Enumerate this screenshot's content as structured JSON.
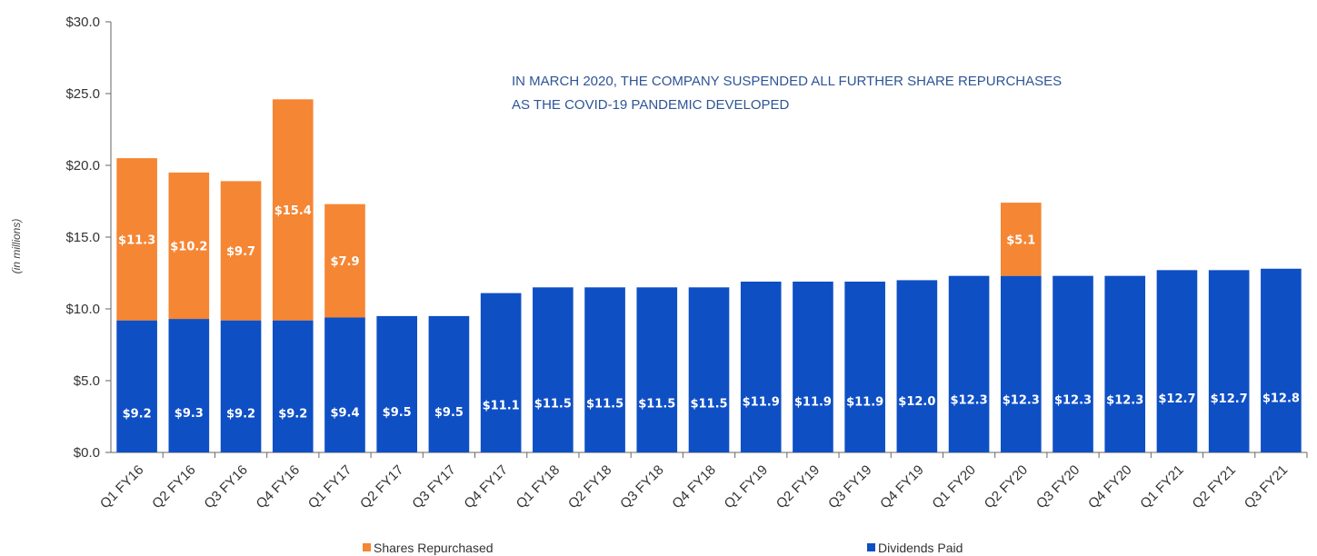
{
  "chart_data": {
    "type": "bar",
    "stacked": true,
    "ylabel": "(in millions)",
    "ylim": [
      0,
      30
    ],
    "yticks": [
      "$0.0",
      "$5.0",
      "$10.0",
      "$15.0",
      "$20.0",
      "$25.0",
      "$30.0"
    ],
    "categories": [
      "Q1 FY16",
      "Q2 FY16",
      "Q3 FY16",
      "Q4 FY16",
      "Q1 FY17",
      "Q2 FY17",
      "Q3 FY17",
      "Q4 FY17",
      "Q1 FY18",
      "Q2 FY18",
      "Q3 FY18",
      "Q4 FY18",
      "Q1 FY19",
      "Q2 FY19",
      "Q3 FY19",
      "Q4 FY19",
      "Q1 FY20",
      "Q2 FY20",
      "Q3 FY20",
      "Q4 FY20",
      "Q1 FY21",
      "Q2 FY21",
      "Q3 FY21"
    ],
    "series": [
      {
        "name": "Dividends Paid",
        "color": "#0f4fc4",
        "values": [
          9.2,
          9.3,
          9.2,
          9.2,
          9.4,
          9.5,
          9.5,
          11.1,
          11.5,
          11.5,
          11.5,
          11.5,
          11.9,
          11.9,
          11.9,
          12.0,
          12.3,
          12.3,
          12.3,
          12.3,
          12.7,
          12.7,
          12.8
        ],
        "labels": [
          "$9.2",
          "$9.3",
          "$9.2",
          "$9.2",
          "$9.4",
          "$9.5",
          "$9.5",
          "$11.1",
          "$11.5",
          "$11.5",
          "$11.5",
          "$11.5",
          "$11.9",
          "$11.9",
          "$11.9",
          "$12.0",
          "$12.3",
          "$12.3",
          "$12.3",
          "$12.3",
          "$12.7",
          "$12.7",
          "$12.8"
        ]
      },
      {
        "name": "Shares Repurchased",
        "color": "#f58634",
        "values": [
          11.3,
          10.2,
          9.7,
          15.4,
          7.9,
          0,
          0,
          0,
          0,
          0,
          0,
          0,
          0,
          0,
          0,
          0,
          0,
          5.1,
          0,
          0,
          0,
          0,
          0
        ],
        "labels": [
          "$11.3",
          "$10.2",
          "$9.7",
          "$15.4",
          "$7.9",
          "",
          "",
          "",
          "",
          "",
          "",
          "",
          "",
          "",
          "",
          "",
          "",
          "$5.1",
          "",
          "",
          "",
          "",
          ""
        ]
      }
    ],
    "annotations": [
      "IN MARCH 2020, THE COMPANY SUSPENDED ALL FURTHER  SHARE REPURCHASES",
      "AS THE  COVID-19  PANDEMIC  DEVELOPED"
    ],
    "legend": {
      "placement": "bottom",
      "items": [
        {
          "name": "Shares Repurchased",
          "color": "#f58634"
        },
        {
          "name": "Dividends Paid",
          "color": "#0f4fc4"
        }
      ]
    },
    "grid": false
  }
}
